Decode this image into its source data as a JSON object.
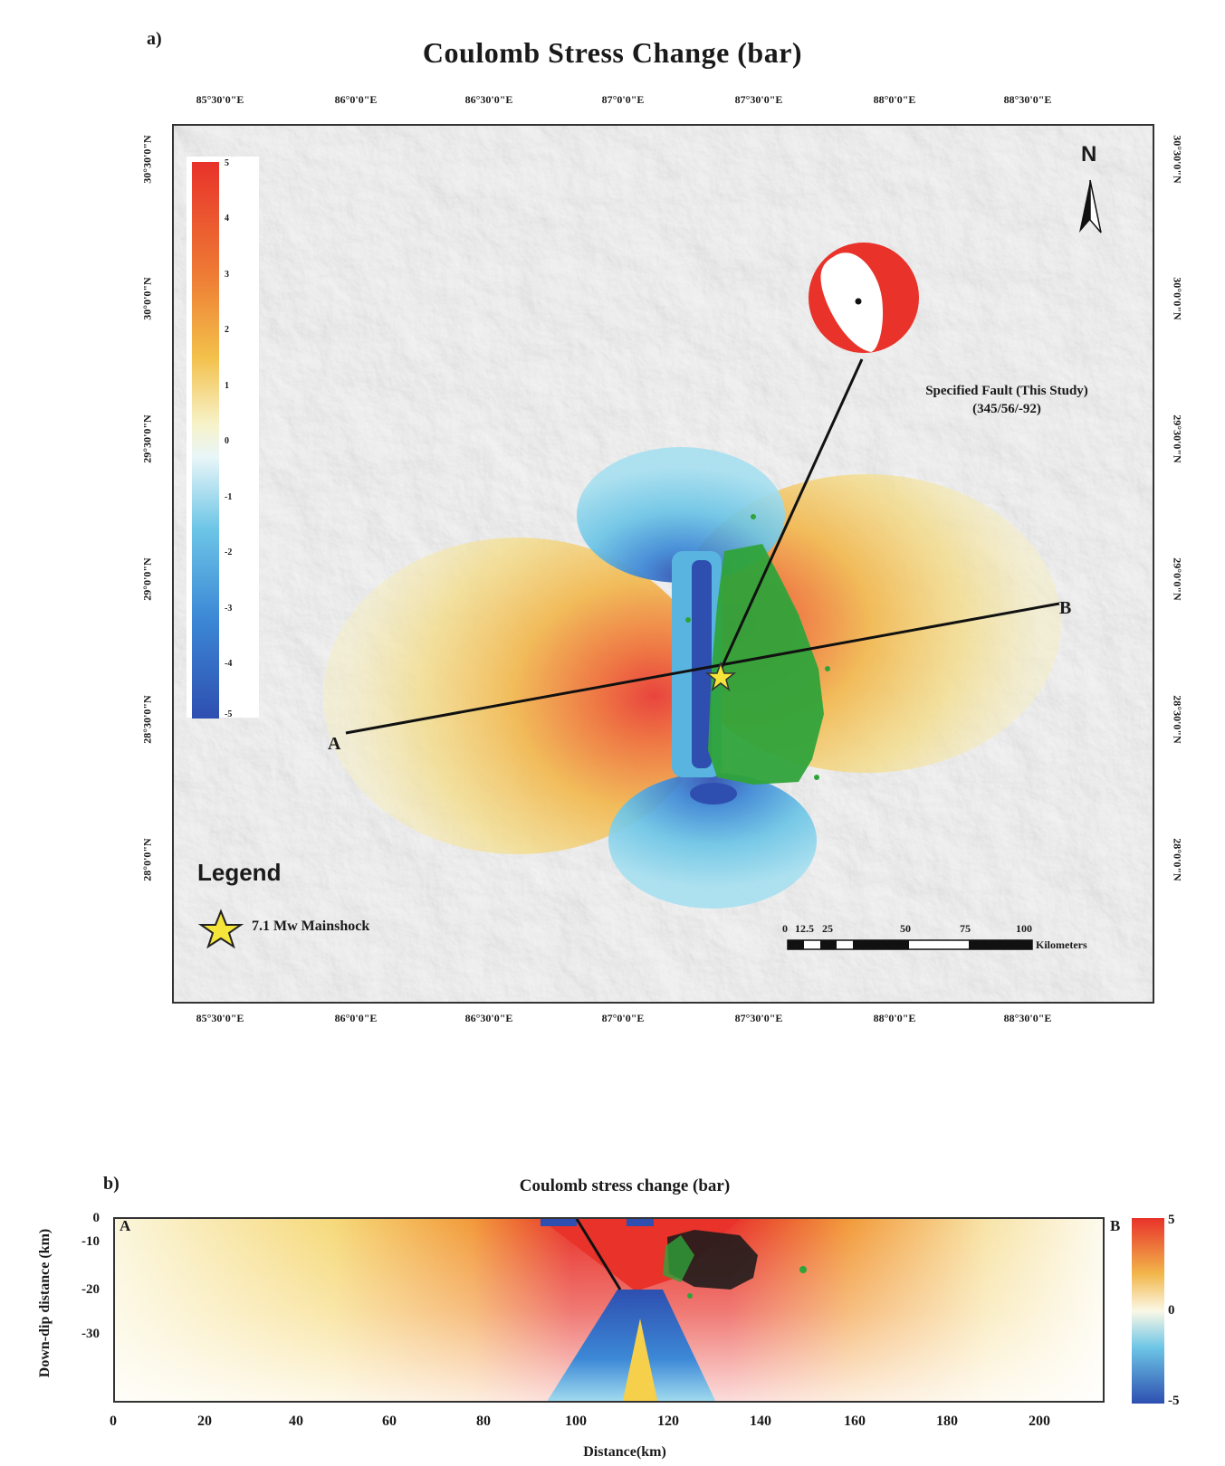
{
  "panel_a": {
    "label": "a)",
    "title": "Coulomb Stress Change (bar)",
    "lon_ticks": [
      "85°30'0\"E",
      "86°0'0\"E",
      "86°30'0\"E",
      "87°0'0\"E",
      "87°30'0\"E",
      "88°0'0\"E",
      "88°30'0\"E"
    ],
    "lat_ticks": [
      "30°30'0\"N",
      "30°0'0\"N",
      "29°30'0\"N",
      "29°0'0\"N",
      "28°30'0\"N",
      "28°0'0\"N"
    ],
    "colorbar_ticks": [
      "5",
      "4",
      "3",
      "2",
      "1",
      "0",
      "-1",
      "-2",
      "-3",
      "-4",
      "-5"
    ],
    "north_label": "N",
    "fault_label_line1": "Specified Fault (This Study)",
    "fault_label_line2": "(345/56/-92)",
    "point_a": "A",
    "point_b": "B",
    "legend_title": "Legend",
    "legend_item": "7.1 Mw Mainshock",
    "scale_ticks": [
      "0",
      "12.5",
      "25",
      "50",
      "75",
      "100"
    ],
    "scale_unit": "Kilometers",
    "colors": {
      "positive": "#e8322a",
      "negative": "#2e4fb0",
      "aftershock": "#2fa33a",
      "mainshock": "#f5e43a"
    }
  },
  "panel_b": {
    "label": "b)",
    "title": "Coulomb stress change (bar)",
    "point_a": "A",
    "point_b": "B",
    "ylabel": "Down-dip distance (km)",
    "xlabel": "Distance(km)",
    "y_ticks": [
      "0",
      "-10",
      "-20",
      "-30"
    ],
    "x_ticks": [
      "0",
      "20",
      "40",
      "60",
      "80",
      "100",
      "120",
      "140",
      "160",
      "180",
      "200"
    ],
    "colorbar_ticks": [
      "5",
      "0",
      "-5"
    ]
  }
}
